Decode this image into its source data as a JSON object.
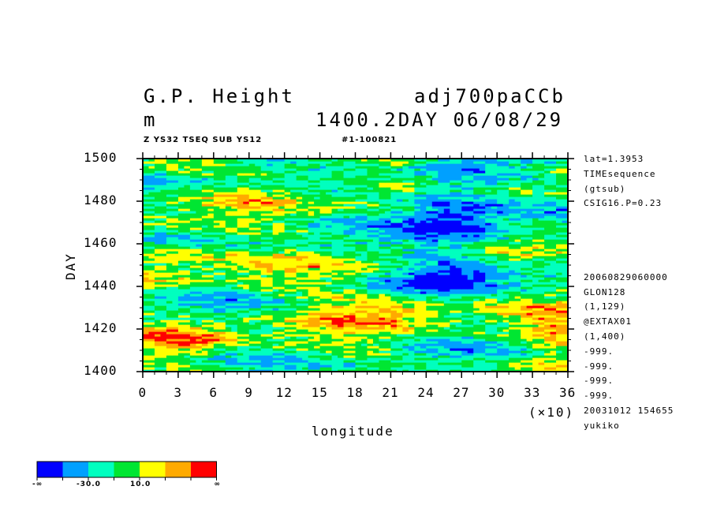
{
  "header": {
    "title_left": "G.P. Height",
    "title_right": "adj700paCCb",
    "unit": "m",
    "time_label": "1400.2DAY 06/08/29",
    "subtitle_left": "Z YS32 TSEQ SUB YS12",
    "subtitle_right": "#1-100821"
  },
  "side_info_top": [
    "lat=1.3953",
    "TIMEsequence",
    "(gtsub)",
    "CSIG16.P=0.23"
  ],
  "side_info_bottom": [
    "20060829060000",
    "GLON128",
    "(1,129)",
    "@EXTAX01",
    "(1,400)",
    "-999.",
    "-999.",
    "-999.",
    "-999.",
    "20031012 154655",
    "yukiko"
  ],
  "chart_data": {
    "type": "heatmap",
    "title": "G.P. Height",
    "xlabel": "longitude",
    "x_multiplier_label": "(×10)",
    "ylabel": "DAY",
    "xlim": [
      0,
      36
    ],
    "ylim": [
      1400,
      1500
    ],
    "x_ticks": [
      "0",
      "3",
      "6",
      "9",
      "12",
      "15",
      "18",
      "21",
      "24",
      "27",
      "30",
      "33",
      "36"
    ],
    "y_ticks": [
      "1400",
      "1420",
      "1440",
      "1460",
      "1480",
      "1500"
    ],
    "colorbar": {
      "colors": [
        "#0000ff",
        "#00a0ff",
        "#00ffbf",
        "#00e632",
        "#ffff00",
        "#ffaa00",
        "#ff0000"
      ],
      "labels": [
        "-∞",
        "-30.0",
        "10.0",
        "∞"
      ]
    },
    "pattern_summary": "Mostly green/cyan background with scattered yellow and orange streaks; red patches near day 1430 around longitude 180-210; blue patches near longitude 240-280 around days 1440-1495."
  }
}
